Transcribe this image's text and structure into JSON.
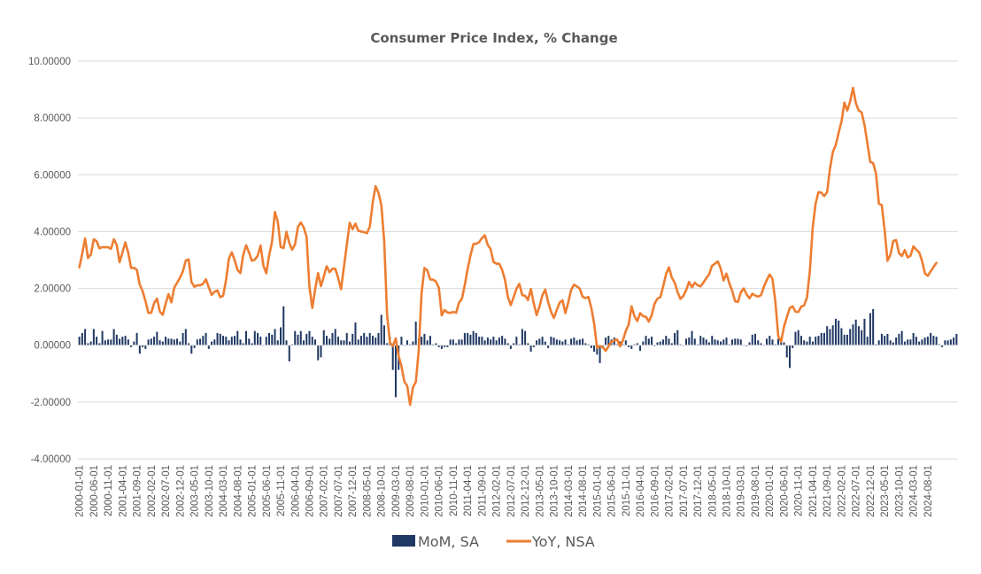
{
  "chart_data": {
    "type": "bar+line",
    "title": "Consumer Price Index, % Change",
    "xlabel": "",
    "ylabel": "",
    "ylim": [
      -4,
      10
    ],
    "yticks": [
      "-4.00000",
      "-2.00000",
      "0.00000",
      "2.00000",
      "4.00000",
      "6.00000",
      "8.00000",
      "10.00000"
    ],
    "ytick_values": [
      -4,
      -2,
      0,
      2,
      4,
      6,
      8,
      10
    ],
    "grid": true,
    "legend_position": "bottom",
    "colors": {
      "mom": "#203864",
      "yoy": "#ED7D31"
    },
    "start": "2000-01",
    "frequency": "monthly",
    "xtick_every": 5,
    "xtick_labels": [
      "2000-01-01",
      "2000-06-01",
      "2000-11-01",
      "2001-04-01",
      "2001-09-01",
      "2002-02-01",
      "2002-07-01",
      "2002-12-01",
      "2003-05-01",
      "2003-10-01",
      "2004-03-01",
      "2004-08-01",
      "2005-01-01",
      "2005-06-01",
      "2005-11-01",
      "2006-04-01",
      "2006-09-01",
      "2007-02-01",
      "2007-07-01",
      "2007-12-01",
      "2008-05-01",
      "2008-10-01",
      "2009-03-01",
      "2009-08-01",
      "2010-01-01",
      "2010-06-01",
      "2010-11-01",
      "2011-04-01",
      "2011-09-01",
      "2012-02-01",
      "2012-07-01",
      "2012-12-01",
      "2013-05-01",
      "2013-10-01",
      "2014-03-01",
      "2014-08-01",
      "2015-01-01",
      "2015-06-01",
      "2015-11-01",
      "2016-04-01",
      "2016-09-01",
      "2017-02-01",
      "2017-07-01",
      "2017-12-01",
      "2018-05-01",
      "2018-10-01",
      "2019-03-01",
      "2019-08-01",
      "2020-01-01",
      "2020-06-01",
      "2020-11-01",
      "2021-04-01",
      "2021-09-01",
      "2022-02-01",
      "2022-07-01",
      "2022-12-01",
      "2023-05-01",
      "2023-10-01",
      "2024-03-01",
      "2024-08-01"
    ],
    "series": [
      {
        "name": "MoM, SA",
        "type": "bar",
        "values": [
          0.3,
          0.43,
          0.57,
          0.07,
          0.13,
          0.57,
          0.3,
          0.07,
          0.5,
          0.17,
          0.2,
          0.2,
          0.57,
          0.37,
          0.23,
          0.3,
          0.33,
          0.2,
          -0.07,
          0.13,
          0.43,
          -0.3,
          -0.07,
          -0.13,
          0.2,
          0.23,
          0.3,
          0.47,
          0.17,
          0.13,
          0.3,
          0.23,
          0.23,
          0.2,
          0.23,
          0.13,
          0.43,
          0.57,
          0.07,
          -0.3,
          -0.1,
          0.2,
          0.23,
          0.33,
          0.43,
          -0.13,
          0.13,
          0.2,
          0.43,
          0.4,
          0.33,
          0.3,
          0.17,
          0.3,
          0.33,
          0.5,
          0.2,
          0.07,
          0.5,
          0.23,
          0.07,
          0.5,
          0.43,
          0.3,
          0.0,
          0.3,
          0.43,
          0.37,
          0.57,
          0.17,
          0.63,
          1.37,
          0.17,
          -0.57,
          0.03,
          0.5,
          0.37,
          0.5,
          0.17,
          0.4,
          0.5,
          0.3,
          0.2,
          -0.53,
          -0.43,
          0.53,
          0.33,
          0.23,
          0.43,
          0.57,
          0.3,
          0.17,
          0.17,
          0.43,
          0.13,
          0.4,
          0.8,
          0.2,
          0.33,
          0.43,
          0.3,
          0.43,
          0.33,
          0.27,
          0.43,
          1.07,
          0.7,
          0.07,
          0.3,
          -0.87,
          -1.83,
          -0.87,
          0.3,
          0.0,
          0.17,
          0.03,
          0.13,
          0.83,
          0.23,
          0.3,
          0.4,
          0.17,
          0.33,
          0.03,
          0.07,
          -0.07,
          -0.13,
          -0.07,
          -0.07,
          0.2,
          0.2,
          0.07,
          0.2,
          0.2,
          0.43,
          0.43,
          0.37,
          0.5,
          0.43,
          0.3,
          0.3,
          0.17,
          0.27,
          0.2,
          0.3,
          0.17,
          0.27,
          0.33,
          0.23,
          0.07,
          -0.13,
          0.07,
          0.3,
          0.03,
          0.57,
          0.5,
          0.07,
          -0.23,
          -0.07,
          0.17,
          0.23,
          0.3,
          0.13,
          -0.1,
          0.3,
          0.27,
          0.2,
          0.17,
          0.13,
          0.2,
          0.03,
          0.23,
          0.27,
          0.17,
          0.2,
          0.23,
          0.07,
          0.03,
          -0.1,
          -0.23,
          -0.33,
          -0.63,
          -0.07,
          0.27,
          0.33,
          0.2,
          0.27,
          0.03,
          0.13,
          0.03,
          0.17,
          -0.07,
          -0.13,
          0.03,
          0.07,
          -0.2,
          0.13,
          0.33,
          0.23,
          0.3,
          -0.03,
          0.1,
          0.13,
          0.2,
          0.33,
          0.23,
          0.07,
          0.43,
          0.53,
          0.03,
          0.0,
          0.23,
          0.27,
          0.5,
          0.23,
          0.03,
          0.33,
          0.27,
          0.2,
          0.1,
          0.33,
          0.2,
          0.17,
          0.13,
          0.2,
          0.27,
          0.03,
          0.2,
          0.23,
          0.23,
          0.2,
          0.0,
          -0.03,
          0.1,
          0.37,
          0.4,
          0.17,
          0.07,
          0.0,
          0.23,
          0.33,
          0.2,
          0.03,
          0.23,
          0.23,
          0.1,
          -0.43,
          -0.8,
          -0.1,
          0.47,
          0.53,
          0.33,
          0.17,
          0.13,
          0.3,
          0.13,
          0.3,
          0.33,
          0.43,
          0.43,
          0.67,
          0.57,
          0.7,
          0.93,
          0.87,
          0.6,
          0.37,
          0.37,
          0.57,
          0.73,
          0.9,
          0.67,
          0.53,
          0.93,
          0.3,
          1.13,
          1.27,
          0.03,
          0.17,
          0.4,
          0.33,
          0.4,
          0.17,
          0.1,
          0.27,
          0.4,
          0.5,
          0.13,
          0.2,
          0.2,
          0.43,
          0.3,
          0.13,
          0.2,
          0.27,
          0.3,
          0.43,
          0.33,
          0.3,
          0.03,
          -0.07,
          0.17,
          0.17,
          0.2,
          0.27,
          0.4
        ]
      },
      {
        "name": "YoY, NSA",
        "type": "line",
        "values": [
          2.74,
          3.22,
          3.76,
          3.07,
          3.19,
          3.73,
          3.66,
          3.41,
          3.45,
          3.45,
          3.45,
          3.39,
          3.73,
          3.53,
          2.92,
          3.27,
          3.62,
          3.25,
          2.72,
          2.72,
          2.65,
          2.13,
          1.9,
          1.55,
          1.14,
          1.14,
          1.48,
          1.64,
          1.18,
          1.07,
          1.46,
          1.8,
          1.51,
          2.03,
          2.2,
          2.38,
          2.6,
          2.98,
          3.02,
          2.22,
          2.06,
          2.11,
          2.11,
          2.16,
          2.32,
          2.04,
          1.77,
          1.88,
          1.93,
          1.69,
          1.74,
          2.29,
          3.05,
          3.27,
          2.99,
          2.65,
          2.54,
          3.19,
          3.52,
          3.26,
          2.97,
          3.01,
          3.15,
          3.51,
          2.8,
          2.53,
          3.17,
          3.64,
          4.69,
          4.35,
          3.46,
          3.42,
          3.99,
          3.6,
          3.36,
          3.55,
          4.17,
          4.32,
          4.15,
          3.82,
          2.06,
          1.31,
          1.97,
          2.54,
          2.08,
          2.42,
          2.78,
          2.57,
          2.69,
          2.69,
          2.36,
          1.97,
          2.76,
          3.54,
          4.31,
          4.08,
          4.28,
          4.03,
          4.0,
          3.98,
          3.94,
          4.18,
          5.02,
          5.6,
          5.37,
          4.94,
          3.66,
          1.07,
          0.09,
          -0.03,
          0.24,
          -0.38,
          -0.74,
          -1.28,
          -1.43,
          -2.1,
          -1.48,
          -1.29,
          -0.18,
          1.84,
          2.72,
          2.63,
          2.31,
          2.31,
          2.24,
          2.02,
          1.05,
          1.24,
          1.15,
          1.14,
          1.17,
          1.14,
          1.5,
          1.63,
          2.11,
          2.68,
          3.16,
          3.56,
          3.57,
          3.63,
          3.77,
          3.87,
          3.53,
          3.39,
          2.93,
          2.87,
          2.87,
          2.65,
          2.3,
          1.7,
          1.41,
          1.69,
          1.99,
          2.16,
          1.76,
          1.74,
          1.59,
          1.98,
          1.47,
          1.06,
          1.36,
          1.76,
          1.96,
          1.52,
          1.18,
          0.96,
          1.24,
          1.5,
          1.58,
          1.13,
          1.51,
          1.95,
          2.13,
          2.07,
          1.99,
          1.7,
          1.66,
          1.7,
          1.32,
          0.76,
          -0.09,
          -0.03,
          -0.07,
          -0.2,
          -0.04,
          0.12,
          0.17,
          0.2,
          -0.04,
          0.17,
          0.5,
          0.73,
          1.37,
          1.02,
          0.85,
          1.13,
          1.02,
          1.0,
          0.83,
          1.06,
          1.46,
          1.64,
          1.69,
          2.07,
          2.5,
          2.74,
          2.38,
          2.2,
          1.87,
          1.63,
          1.73,
          1.94,
          2.23,
          2.04,
          2.2,
          2.11,
          2.07,
          2.21,
          2.36,
          2.5,
          2.8,
          2.87,
          2.95,
          2.7,
          2.28,
          2.52,
          2.18,
          1.91,
          1.55,
          1.52,
          1.86,
          2.0,
          1.79,
          1.65,
          1.81,
          1.75,
          1.71,
          1.76,
          2.05,
          2.29,
          2.49,
          2.33,
          1.54,
          0.33,
          0.12,
          0.65,
          0.99,
          1.31,
          1.37,
          1.18,
          1.17,
          1.36,
          1.4,
          1.68,
          2.62,
          4.16,
          4.99,
          5.39,
          5.37,
          5.25,
          5.39,
          6.22,
          6.81,
          7.04,
          7.48,
          7.87,
          8.54,
          8.26,
          8.58,
          9.06,
          8.52,
          8.26,
          8.2,
          7.75,
          7.11,
          6.45,
          6.41,
          6.04,
          4.98,
          4.93,
          4.05,
          2.97,
          3.18,
          3.67,
          3.7,
          3.24,
          3.14,
          3.35,
          3.09,
          3.15,
          3.48,
          3.36,
          3.27,
          2.97,
          2.53,
          2.44,
          2.6,
          2.75,
          2.9
        ]
      }
    ]
  },
  "legend": {
    "items": [
      {
        "label": "MoM, SA",
        "marker": "bar-swatch"
      },
      {
        "label": "YoY, NSA",
        "marker": "line-swatch"
      }
    ]
  }
}
